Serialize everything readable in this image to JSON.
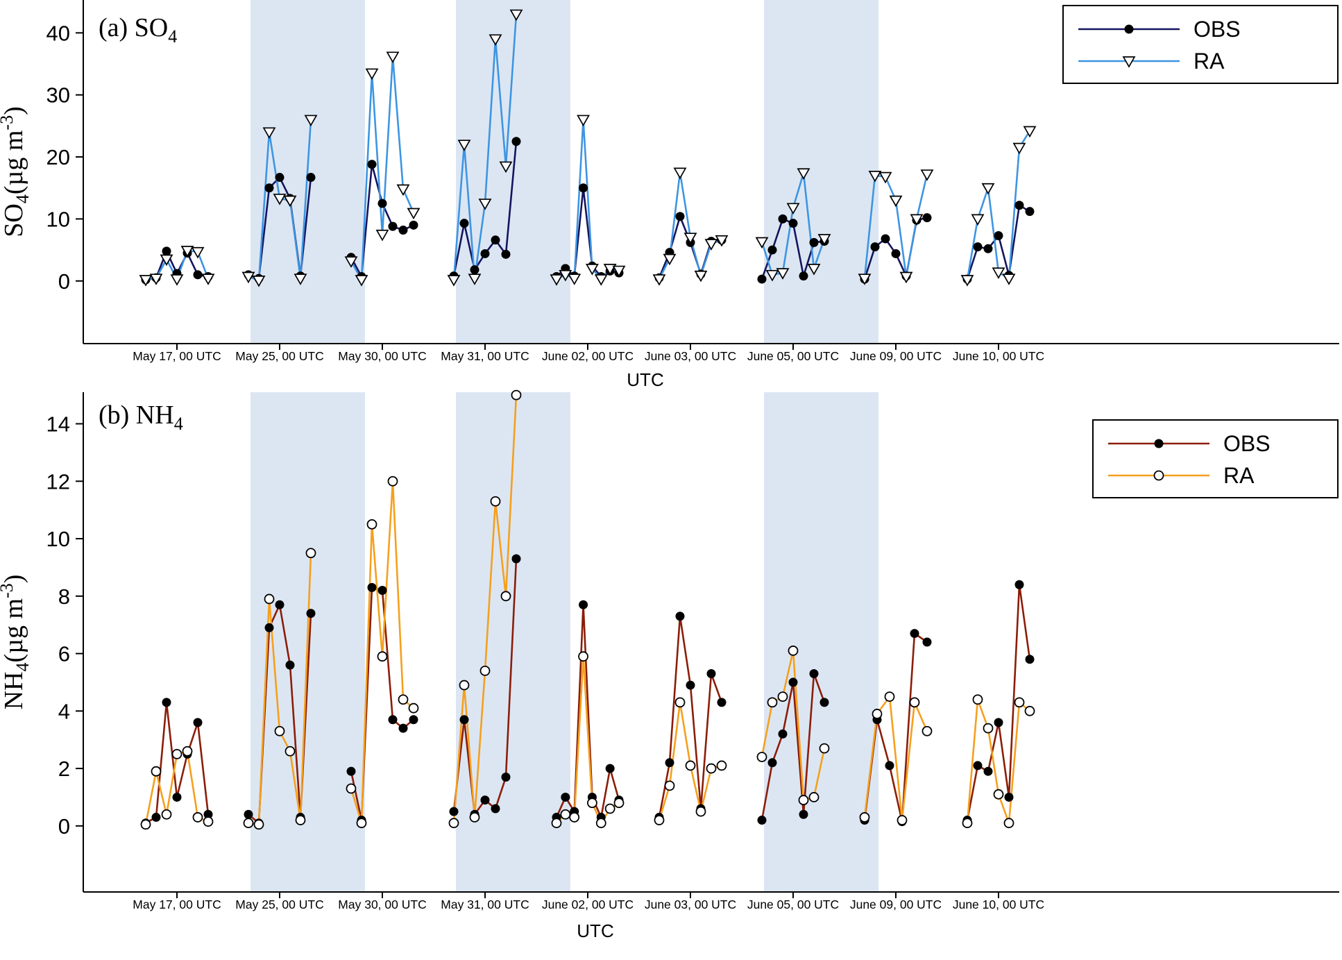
{
  "figure": {
    "background": "#ffffff",
    "band_color": "#dce6f3",
    "x_axis_title": "UTC",
    "x_categories": [
      "May 17, 00 UTC",
      "May 25, 00 UTC",
      "May 30, 00 UTC",
      "May 31, 00 UTC",
      "June 02, 00 UTC",
      "June 03, 00 UTC",
      "June 05, 00 UTC",
      "June 09, 00 UTC",
      "June 10, 00 UTC"
    ],
    "shaded_groups": [
      1,
      3,
      6
    ]
  },
  "chart_data": [
    {
      "type": "line",
      "panel": "a",
      "title_parts": [
        {
          "t": "(a) SO"
        },
        {
          "t": "4",
          "sub": true
        }
      ],
      "ylabel_parts": [
        {
          "t": "SO"
        },
        {
          "t": "4",
          "sub": true
        },
        {
          "t": "(µg m"
        },
        {
          "t": "-3",
          "sup": true
        },
        {
          "t": ")"
        }
      ],
      "ylim": [
        -10.1,
        45.3
      ],
      "yticks": [
        0,
        10,
        20,
        30,
        40
      ],
      "xlabel": "UTC",
      "legend_position": "top-right",
      "grid": false,
      "categories": [
        "May 17, 00 UTC",
        "May 25, 00 UTC",
        "May 30, 00 UTC",
        "May 31, 00 UTC",
        "June 02, 00 UTC",
        "June 03, 00 UTC",
        "June 05, 00 UTC",
        "June 09, 00 UTC",
        "June 10, 00 UTC"
      ],
      "series": [
        {
          "name": "OBS",
          "color": "#14145f",
          "marker": "circle-filled",
          "groups": [
            [
              0.2,
              0.5,
              4.8,
              1.2,
              4.5,
              1.0,
              0.7
            ],
            [
              1.0,
              0.4,
              15.0,
              16.7,
              13.3,
              0.8,
              16.7
            ],
            [
              3.8,
              0.7,
              18.8,
              12.5,
              8.8,
              8.2,
              9.0
            ],
            [
              0.8,
              9.3,
              1.8,
              4.4,
              6.6,
              4.3,
              22.5
            ],
            [
              0.7,
              2.0,
              0.8,
              15.0,
              2.4,
              0.7,
              1.6,
              1.3
            ],
            [
              0.5,
              4.6,
              10.4,
              6.2,
              1.1,
              6.4,
              6.6
            ],
            [
              0.3,
              5.0,
              10.0,
              9.3,
              0.8,
              6.2,
              6.4
            ],
            [
              0.3,
              5.5,
              6.8,
              4.4,
              0.8,
              9.8,
              10.2
            ],
            [
              0.3,
              5.5,
              5.2,
              7.3,
              0.9,
              12.2,
              11.2
            ]
          ]
        },
        {
          "name": "RA",
          "color": "#3d95e2",
          "marker": "triangle-down-open",
          "groups": [
            [
              0.2,
              0.4,
              3.5,
              0.3,
              4.9,
              4.7,
              0.4
            ],
            [
              0.7,
              0.1,
              24.0,
              13.3,
              13.0,
              0.4,
              26.0
            ],
            [
              3.2,
              0.2,
              33.5,
              7.5,
              36.2,
              14.8,
              11.0
            ],
            [
              0.2,
              22.0,
              0.4,
              12.5,
              39.0,
              18.5,
              43.0
            ],
            [
              0.3,
              1.0,
              0.4,
              26.0,
              2.0,
              0.3,
              2.0,
              1.7
            ],
            [
              0.3,
              3.6,
              17.5,
              7.0,
              0.9,
              6.0,
              6.6
            ],
            [
              6.3,
              1.0,
              1.3,
              11.8,
              17.4,
              2.0,
              6.8
            ],
            [
              0.4,
              17.0,
              16.8,
              13.0,
              0.7,
              10.0,
              17.2
            ],
            [
              0.2,
              10.0,
              15.0,
              1.4,
              0.4,
              21.5,
              24.2
            ]
          ]
        }
      ]
    },
    {
      "type": "line",
      "panel": "b",
      "title_parts": [
        {
          "t": "(b) NH"
        },
        {
          "t": "4",
          "sub": true
        }
      ],
      "ylabel_parts": [
        {
          "t": "NH"
        },
        {
          "t": "4",
          "sub": true
        },
        {
          "t": "(µg m"
        },
        {
          "t": "-3",
          "sup": true
        },
        {
          "t": ")"
        }
      ],
      "ylim": [
        -2.3,
        15.1
      ],
      "yticks": [
        0,
        2,
        4,
        6,
        8,
        10,
        12,
        14
      ],
      "xlabel": "UTC",
      "legend_position": "top-right",
      "grid": false,
      "categories": [
        "May 17, 00 UTC",
        "May 25, 00 UTC",
        "May 30, 00 UTC",
        "May 31, 00 UTC",
        "June 02, 00 UTC",
        "June 03, 00 UTC",
        "June 05, 00 UTC",
        "June 09, 00 UTC",
        "June 10, 00 UTC"
      ],
      "series": [
        {
          "name": "OBS",
          "color": "#8b1d08",
          "marker": "circle-filled",
          "groups": [
            [
              0.1,
              0.3,
              4.3,
              1.0,
              2.5,
              3.6,
              0.4
            ],
            [
              0.4,
              0.1,
              6.9,
              7.7,
              5.6,
              0.3,
              7.4
            ],
            [
              1.9,
              0.2,
              8.3,
              8.2,
              3.7,
              3.4,
              3.7
            ],
            [
              0.5,
              3.7,
              0.4,
              0.9,
              0.6,
              1.7,
              9.3
            ],
            [
              0.3,
              1.0,
              0.5,
              7.7,
              1.0,
              0.3,
              2.0,
              0.9
            ],
            [
              0.3,
              2.2,
              7.3,
              4.9,
              0.6,
              5.3,
              4.3
            ],
            [
              0.2,
              2.2,
              3.2,
              5.0,
              0.4,
              5.3,
              4.3
            ],
            [
              0.2,
              3.7,
              2.1,
              0.15,
              6.7,
              6.4
            ],
            [
              0.2,
              2.1,
              1.9,
              3.6,
              1.0,
              8.4,
              5.8
            ]
          ]
        },
        {
          "name": "RA",
          "color": "#f5a01e",
          "marker": "circle-open",
          "groups": [
            [
              0.05,
              1.9,
              0.4,
              2.5,
              2.6,
              0.3,
              0.15
            ],
            [
              0.1,
              0.05,
              7.9,
              3.3,
              2.6,
              0.2,
              9.5
            ],
            [
              1.3,
              0.1,
              10.5,
              5.9,
              12.0,
              4.4,
              4.1
            ],
            [
              0.1,
              4.9,
              0.3,
              5.4,
              11.3,
              8.0,
              15.0
            ],
            [
              0.1,
              0.4,
              0.3,
              5.9,
              0.8,
              0.1,
              0.6,
              0.8
            ],
            [
              0.2,
              1.4,
              4.3,
              2.1,
              0.5,
              2.0,
              2.1
            ],
            [
              2.4,
              4.3,
              4.5,
              6.1,
              0.9,
              1.0,
              2.7
            ],
            [
              0.3,
              3.9,
              4.5,
              0.2,
              4.3,
              3.3
            ],
            [
              0.1,
              4.4,
              3.4,
              1.1,
              0.1,
              4.3,
              4.0
            ]
          ]
        }
      ]
    }
  ]
}
